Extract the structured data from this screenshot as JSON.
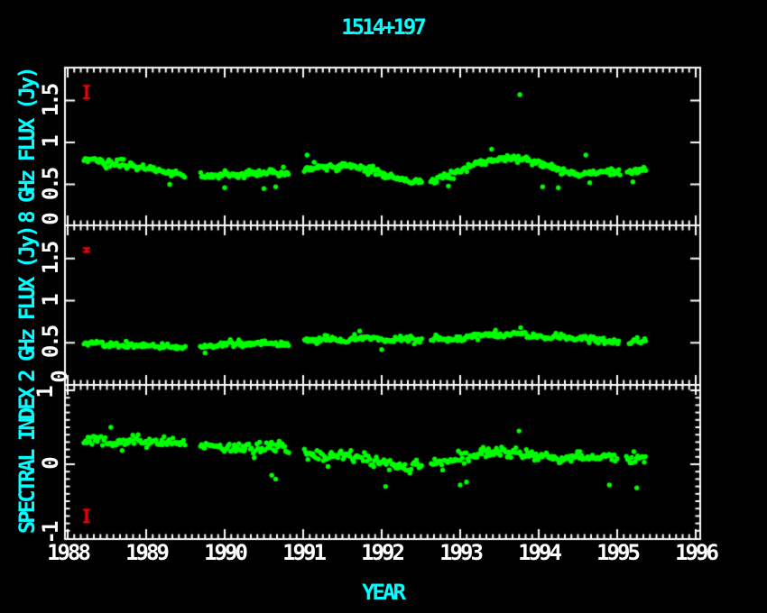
{
  "chart_data": {
    "type": "scatter",
    "title": "1514+197",
    "xlabel": "YEAR",
    "colors": {
      "background": "#000000",
      "frame": "#ffffff",
      "tick_text": "#ffffff",
      "axis_label": "#00ffff",
      "data_points": "#00ff00",
      "error_bar": "#ff0000"
    },
    "x_axis": {
      "min": 1988,
      "max": 1996,
      "minor_ticks_per_year": 12,
      "ticks": [
        {
          "value": 1988,
          "label": "1988"
        },
        {
          "value": 1989,
          "label": "1989"
        },
        {
          "value": 1990,
          "label": "1990"
        },
        {
          "value": 1991,
          "label": "1991"
        },
        {
          "value": 1992,
          "label": "1992"
        },
        {
          "value": 1993,
          "label": "1993"
        },
        {
          "value": 1994,
          "label": "1994"
        },
        {
          "value": 1995,
          "label": "1995"
        },
        {
          "value": 1996,
          "label": "1996"
        }
      ]
    },
    "x_data_range": [
      1988.21,
      1995.38
    ],
    "seed": 1514,
    "panels": [
      {
        "ylabel": "8 GHz FLUX (Jy)",
        "ymin": 0,
        "ymax": 1.89,
        "yticks": [
          {
            "value": 0,
            "label": "0"
          },
          {
            "value": 0.5,
            "label": "0.5"
          },
          {
            "value": 1,
            "label": "1"
          },
          {
            "value": 1.5,
            "label": "1.5"
          }
        ],
        "y_minor_step": null,
        "n_points": 460,
        "scatter_sigma": 0.02,
        "gaps": [
          [
            1989.5,
            1989.68
          ],
          [
            1990.82,
            1991.0
          ],
          [
            1992.52,
            1992.62
          ],
          [
            1995.05,
            1995.12
          ]
        ],
        "trend": [
          [
            1988.22,
            0.78
          ],
          [
            1988.35,
            0.8
          ],
          [
            1988.5,
            0.74
          ],
          [
            1988.62,
            0.77
          ],
          [
            1988.75,
            0.73
          ],
          [
            1988.9,
            0.71
          ],
          [
            1989.05,
            0.69
          ],
          [
            1989.2,
            0.66
          ],
          [
            1989.35,
            0.64
          ],
          [
            1989.5,
            0.62
          ],
          [
            1989.68,
            0.6
          ],
          [
            1989.85,
            0.6
          ],
          [
            1990.0,
            0.62
          ],
          [
            1990.15,
            0.6
          ],
          [
            1990.3,
            0.64
          ],
          [
            1990.45,
            0.62
          ],
          [
            1990.6,
            0.66
          ],
          [
            1990.75,
            0.64
          ],
          [
            1990.95,
            0.67
          ],
          [
            1991.1,
            0.7
          ],
          [
            1991.25,
            0.72
          ],
          [
            1991.4,
            0.7
          ],
          [
            1991.55,
            0.73
          ],
          [
            1991.7,
            0.71
          ],
          [
            1991.85,
            0.67
          ],
          [
            1992.0,
            0.62
          ],
          [
            1992.15,
            0.57
          ],
          [
            1992.3,
            0.54
          ],
          [
            1992.45,
            0.52
          ],
          [
            1992.6,
            0.54
          ],
          [
            1992.75,
            0.58
          ],
          [
            1992.9,
            0.62
          ],
          [
            1993.05,
            0.67
          ],
          [
            1993.2,
            0.74
          ],
          [
            1993.35,
            0.78
          ],
          [
            1993.5,
            0.8
          ],
          [
            1993.65,
            0.82
          ],
          [
            1993.8,
            0.79
          ],
          [
            1993.95,
            0.76
          ],
          [
            1994.1,
            0.72
          ],
          [
            1994.25,
            0.68
          ],
          [
            1994.4,
            0.65
          ],
          [
            1994.55,
            0.62
          ],
          [
            1994.7,
            0.64
          ],
          [
            1994.85,
            0.66
          ],
          [
            1995.0,
            0.64
          ],
          [
            1995.15,
            0.66
          ],
          [
            1995.38,
            0.67
          ]
        ],
        "outliers": [
          [
            1993.76,
            1.57
          ],
          [
            1989.3,
            0.5
          ],
          [
            1990.5,
            0.45
          ],
          [
            1990.65,
            0.47
          ],
          [
            1991.05,
            0.85
          ],
          [
            1992.85,
            0.48
          ],
          [
            1993.4,
            0.92
          ],
          [
            1994.05,
            0.47
          ],
          [
            1994.25,
            0.46
          ],
          [
            1994.6,
            0.85
          ],
          [
            1994.65,
            0.52
          ],
          [
            1995.2,
            0.53
          ],
          [
            1990.0,
            0.46
          ]
        ],
        "error_bar": {
          "x": 1988.24,
          "y": 1.6,
          "err": 0.075
        }
      },
      {
        "ylabel": "2 GHz FLUX (Jy)",
        "ymin": 0,
        "ymax": 1.89,
        "yticks": [
          {
            "value": 0,
            "label": "0"
          },
          {
            "value": 0.5,
            "label": "0.5"
          },
          {
            "value": 1,
            "label": "1"
          },
          {
            "value": 1.5,
            "label": "1.5"
          }
        ],
        "y_minor_step": null,
        "n_points": 440,
        "scatter_sigma": 0.018,
        "gaps": [
          [
            1989.5,
            1989.68
          ],
          [
            1990.82,
            1991.0
          ],
          [
            1992.52,
            1992.62
          ],
          [
            1995.03,
            1995.14
          ]
        ],
        "trend": [
          [
            1988.22,
            0.48
          ],
          [
            1988.4,
            0.5
          ],
          [
            1988.6,
            0.47
          ],
          [
            1988.8,
            0.49
          ],
          [
            1989.0,
            0.46
          ],
          [
            1989.2,
            0.47
          ],
          [
            1989.4,
            0.45
          ],
          [
            1989.68,
            0.44
          ],
          [
            1989.9,
            0.47
          ],
          [
            1990.1,
            0.5
          ],
          [
            1990.3,
            0.47
          ],
          [
            1990.5,
            0.5
          ],
          [
            1990.7,
            0.48
          ],
          [
            1990.95,
            0.51
          ],
          [
            1991.1,
            0.53
          ],
          [
            1991.3,
            0.55
          ],
          [
            1991.5,
            0.52
          ],
          [
            1991.7,
            0.55
          ],
          [
            1991.9,
            0.56
          ],
          [
            1992.1,
            0.52
          ],
          [
            1992.3,
            0.55
          ],
          [
            1992.5,
            0.52
          ],
          [
            1992.7,
            0.56
          ],
          [
            1992.9,
            0.53
          ],
          [
            1993.1,
            0.56
          ],
          [
            1993.3,
            0.6
          ],
          [
            1993.5,
            0.58
          ],
          [
            1993.7,
            0.62
          ],
          [
            1993.9,
            0.58
          ],
          [
            1994.1,
            0.56
          ],
          [
            1994.3,
            0.58
          ],
          [
            1994.5,
            0.54
          ],
          [
            1994.7,
            0.55
          ],
          [
            1994.9,
            0.52
          ],
          [
            1995.1,
            0.5
          ],
          [
            1995.38,
            0.53
          ]
        ],
        "outliers": [
          [
            1993.77,
            0.68
          ],
          [
            1993.45,
            0.65
          ],
          [
            1991.72,
            0.64
          ],
          [
            1989.75,
            0.38
          ],
          [
            1992.0,
            0.42
          ]
        ],
        "error_bar": {
          "x": 1988.24,
          "y": 1.6,
          "err": 0.022
        }
      },
      {
        "ylabel": "SPECTRAL INDEX",
        "ymin": -1.01,
        "ymax": 1.07,
        "yticks": [
          {
            "value": -1,
            "label": "-1"
          },
          {
            "value": 0,
            "label": "0"
          },
          {
            "value": 1,
            "label": "1"
          }
        ],
        "y_minor_step": 0.1,
        "n_points": 430,
        "scatter_sigma": 0.035,
        "gaps": [
          [
            1989.5,
            1989.68
          ],
          [
            1990.82,
            1991.0
          ],
          [
            1992.52,
            1992.62
          ],
          [
            1995.0,
            1995.1
          ]
        ],
        "trend": [
          [
            1988.22,
            0.32
          ],
          [
            1988.4,
            0.35
          ],
          [
            1988.6,
            0.3
          ],
          [
            1988.8,
            0.33
          ],
          [
            1989.0,
            0.3
          ],
          [
            1989.2,
            0.32
          ],
          [
            1989.4,
            0.28
          ],
          [
            1989.68,
            0.26
          ],
          [
            1989.9,
            0.24
          ],
          [
            1990.1,
            0.2
          ],
          [
            1990.3,
            0.26
          ],
          [
            1990.5,
            0.22
          ],
          [
            1990.7,
            0.25
          ],
          [
            1990.95,
            0.18
          ],
          [
            1991.1,
            0.12
          ],
          [
            1991.3,
            0.1
          ],
          [
            1991.5,
            0.14
          ],
          [
            1991.7,
            0.08
          ],
          [
            1991.9,
            0.04
          ],
          [
            1992.1,
            0.0
          ],
          [
            1992.3,
            -0.04
          ],
          [
            1992.5,
            -0.02
          ],
          [
            1992.7,
            0.02
          ],
          [
            1992.9,
            0.05
          ],
          [
            1993.1,
            0.1
          ],
          [
            1993.3,
            0.15
          ],
          [
            1993.5,
            0.17
          ],
          [
            1993.7,
            0.15
          ],
          [
            1993.9,
            0.12
          ],
          [
            1994.1,
            0.1
          ],
          [
            1994.3,
            0.06
          ],
          [
            1994.5,
            0.1
          ],
          [
            1994.7,
            0.08
          ],
          [
            1994.9,
            0.12
          ],
          [
            1995.1,
            0.08
          ],
          [
            1995.38,
            0.1
          ]
        ],
        "outliers": [
          [
            1992.05,
            -0.3
          ],
          [
            1993.0,
            -0.28
          ],
          [
            1993.08,
            -0.24
          ],
          [
            1994.9,
            -0.28
          ],
          [
            1995.25,
            -0.32
          ],
          [
            1993.75,
            0.45
          ],
          [
            1988.55,
            0.5
          ],
          [
            1990.6,
            -0.15
          ],
          [
            1990.65,
            -0.2
          ]
        ],
        "error_bar": {
          "x": 1988.24,
          "y": -0.7,
          "err": 0.085
        }
      }
    ]
  }
}
